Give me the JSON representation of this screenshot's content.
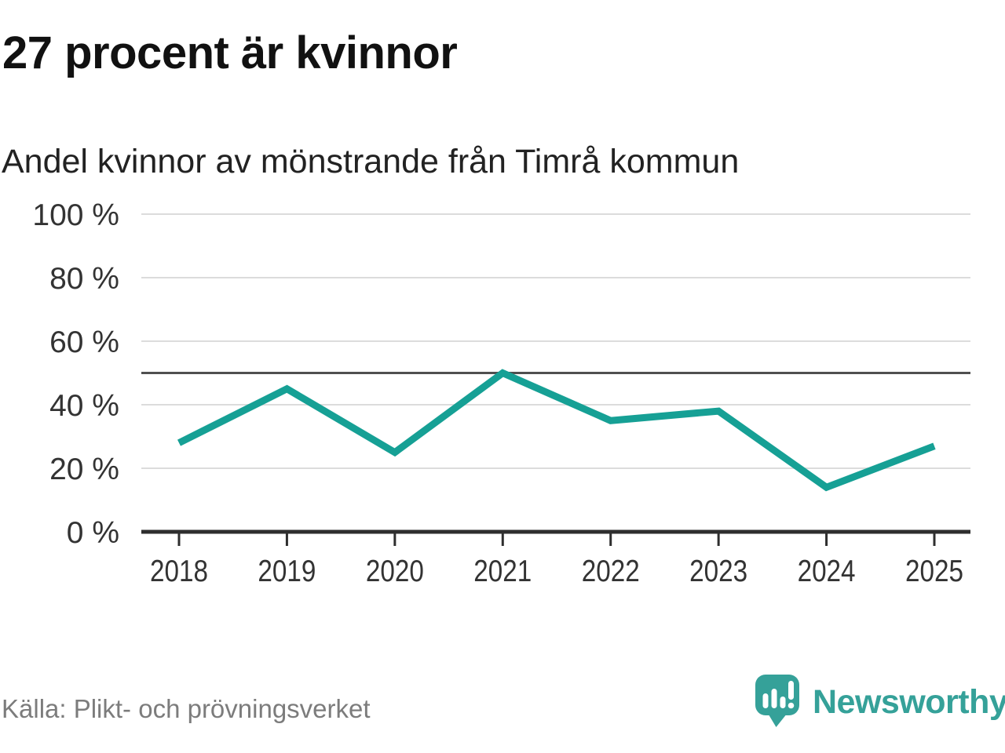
{
  "header": {
    "title": "27 procent är kvinnor",
    "subtitle": "Andel kvinnor av mönstrande från Timrå kommun"
  },
  "chart_data": {
    "type": "line",
    "title": "27 procent är kvinnor",
    "subtitle": "Andel kvinnor av mönstrande från Timrå kommun",
    "categories": [
      "2018",
      "2019",
      "2020",
      "2021",
      "2022",
      "2023",
      "2024",
      "2025"
    ],
    "values": [
      28,
      45,
      25,
      50,
      35,
      38,
      14,
      27
    ],
    "unit": "%",
    "ylim": [
      0,
      100
    ],
    "yticks": [
      0,
      20,
      40,
      60,
      80,
      100
    ],
    "ytick_suffix": " %",
    "reference_line": 50,
    "grid": true,
    "legend": false,
    "line_color": "#16a095"
  },
  "footer": {
    "source": "Källa: Plikt- och prövningsverket",
    "brand": "Newsworthy",
    "logo_icon": "newsworthy-bar-chart-bubble-icon"
  },
  "colors": {
    "line": "#16a095",
    "logo": "#35a199",
    "grid": "#dcdcdc",
    "reference": "#4f4f4f",
    "axis": "#2e2e2e",
    "tick_label": "#333333",
    "title_text": "#111111",
    "subtitle_text": "#222222",
    "muted_text": "#7c7c7c",
    "background": "#ffffff"
  }
}
